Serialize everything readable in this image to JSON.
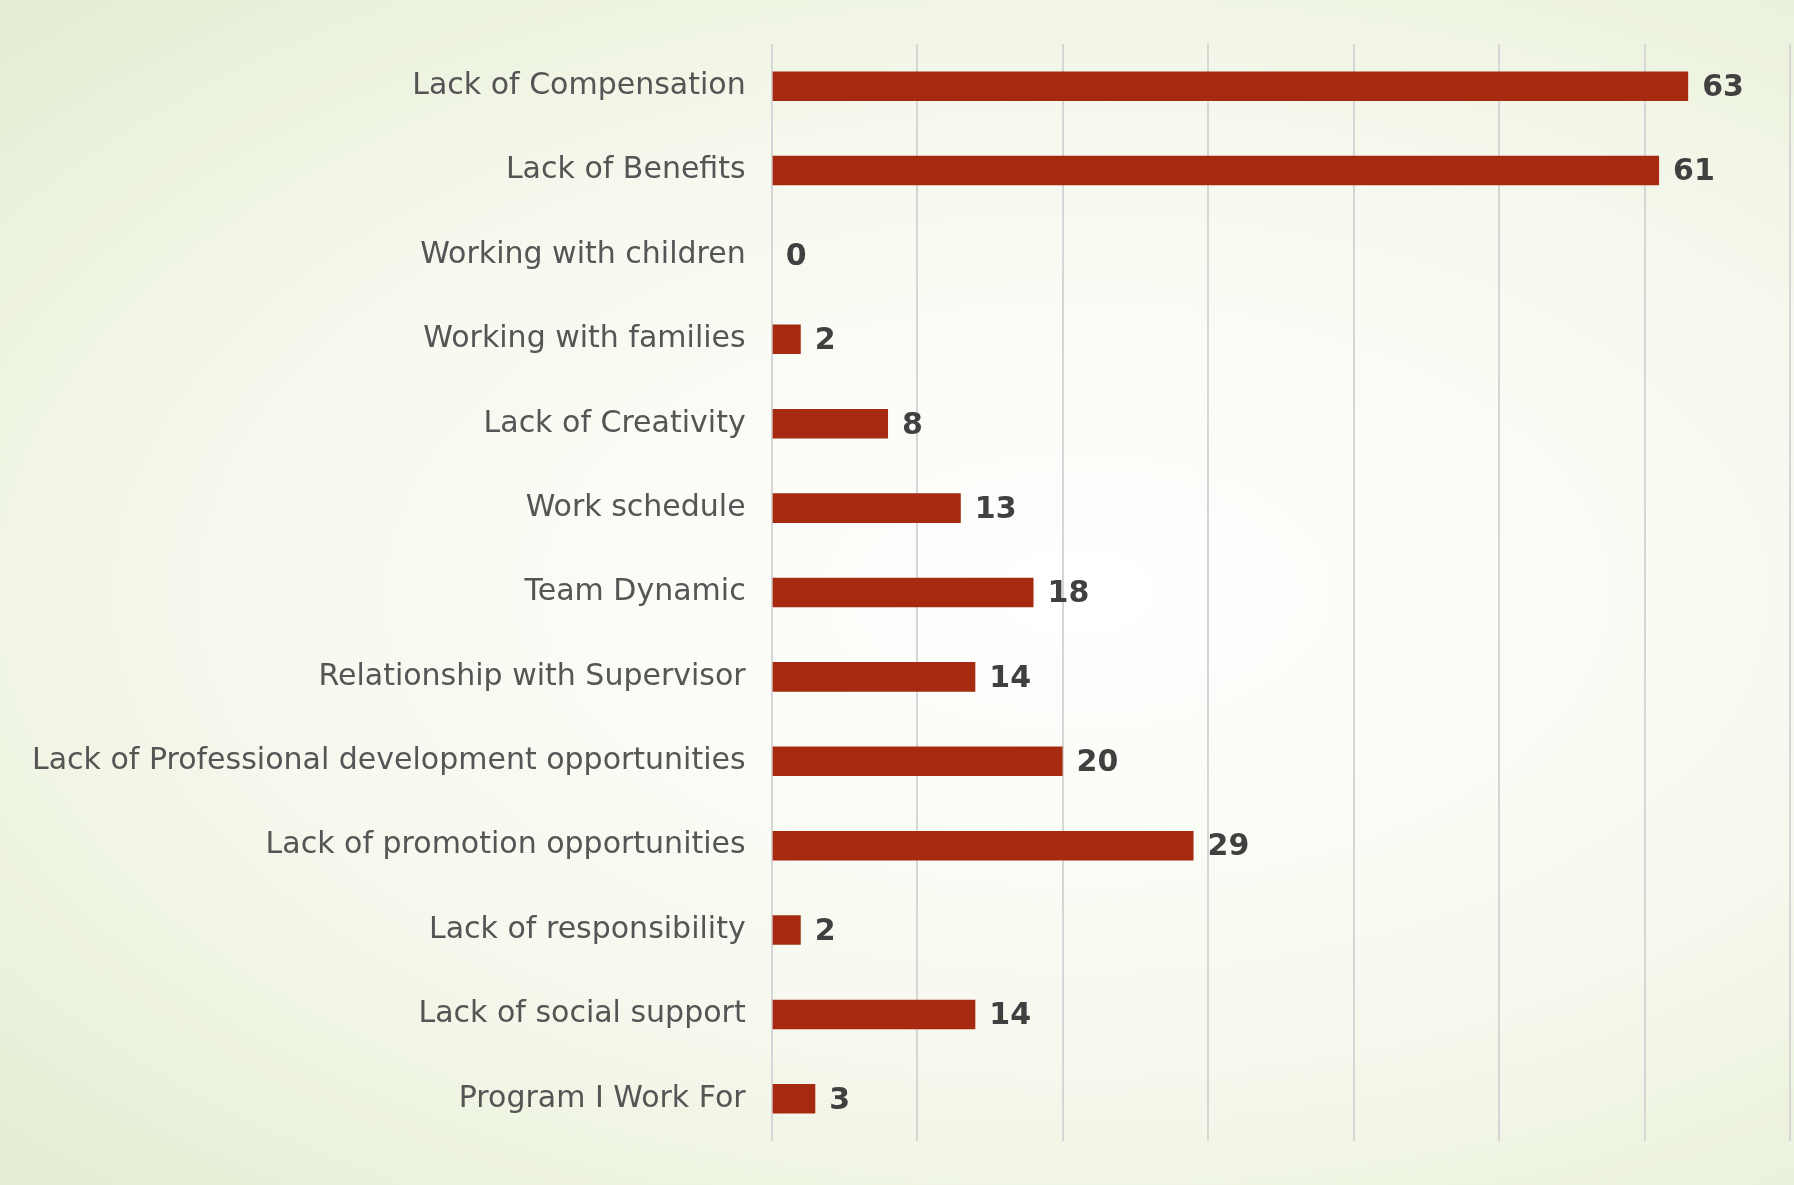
{
  "chart_data": {
    "type": "bar",
    "orientation": "horizontal",
    "categories": [
      "Lack of Compensation",
      "Lack of Benefits",
      "Working with children",
      "Working with families",
      "Lack of Creativity",
      "Work schedule",
      "Team Dynamic",
      "Relationship with Supervisor",
      "Lack of Professional development opportunities",
      "Lack of promotion opportunities",
      "Lack of responsibility",
      "Lack of social support",
      "Program I Work For"
    ],
    "values": [
      63,
      61,
      0,
      2,
      8,
      13,
      18,
      14,
      20,
      29,
      2,
      14,
      3
    ],
    "color": "#a52a10",
    "xlim": [
      0,
      70
    ],
    "xticks": [
      {
        "value": 0,
        "label": null
      },
      {
        "value": 10,
        "label": null
      },
      {
        "value": 20,
        "label": null
      },
      {
        "value": 30,
        "label": null
      },
      {
        "value": 40,
        "label": null
      },
      {
        "value": 50,
        "label": null
      },
      {
        "value": 60,
        "label": null
      },
      {
        "value": 70,
        "label": null
      }
    ],
    "grid": "x",
    "tick_labels": "y",
    "data_labels": true,
    "legend": false
  }
}
